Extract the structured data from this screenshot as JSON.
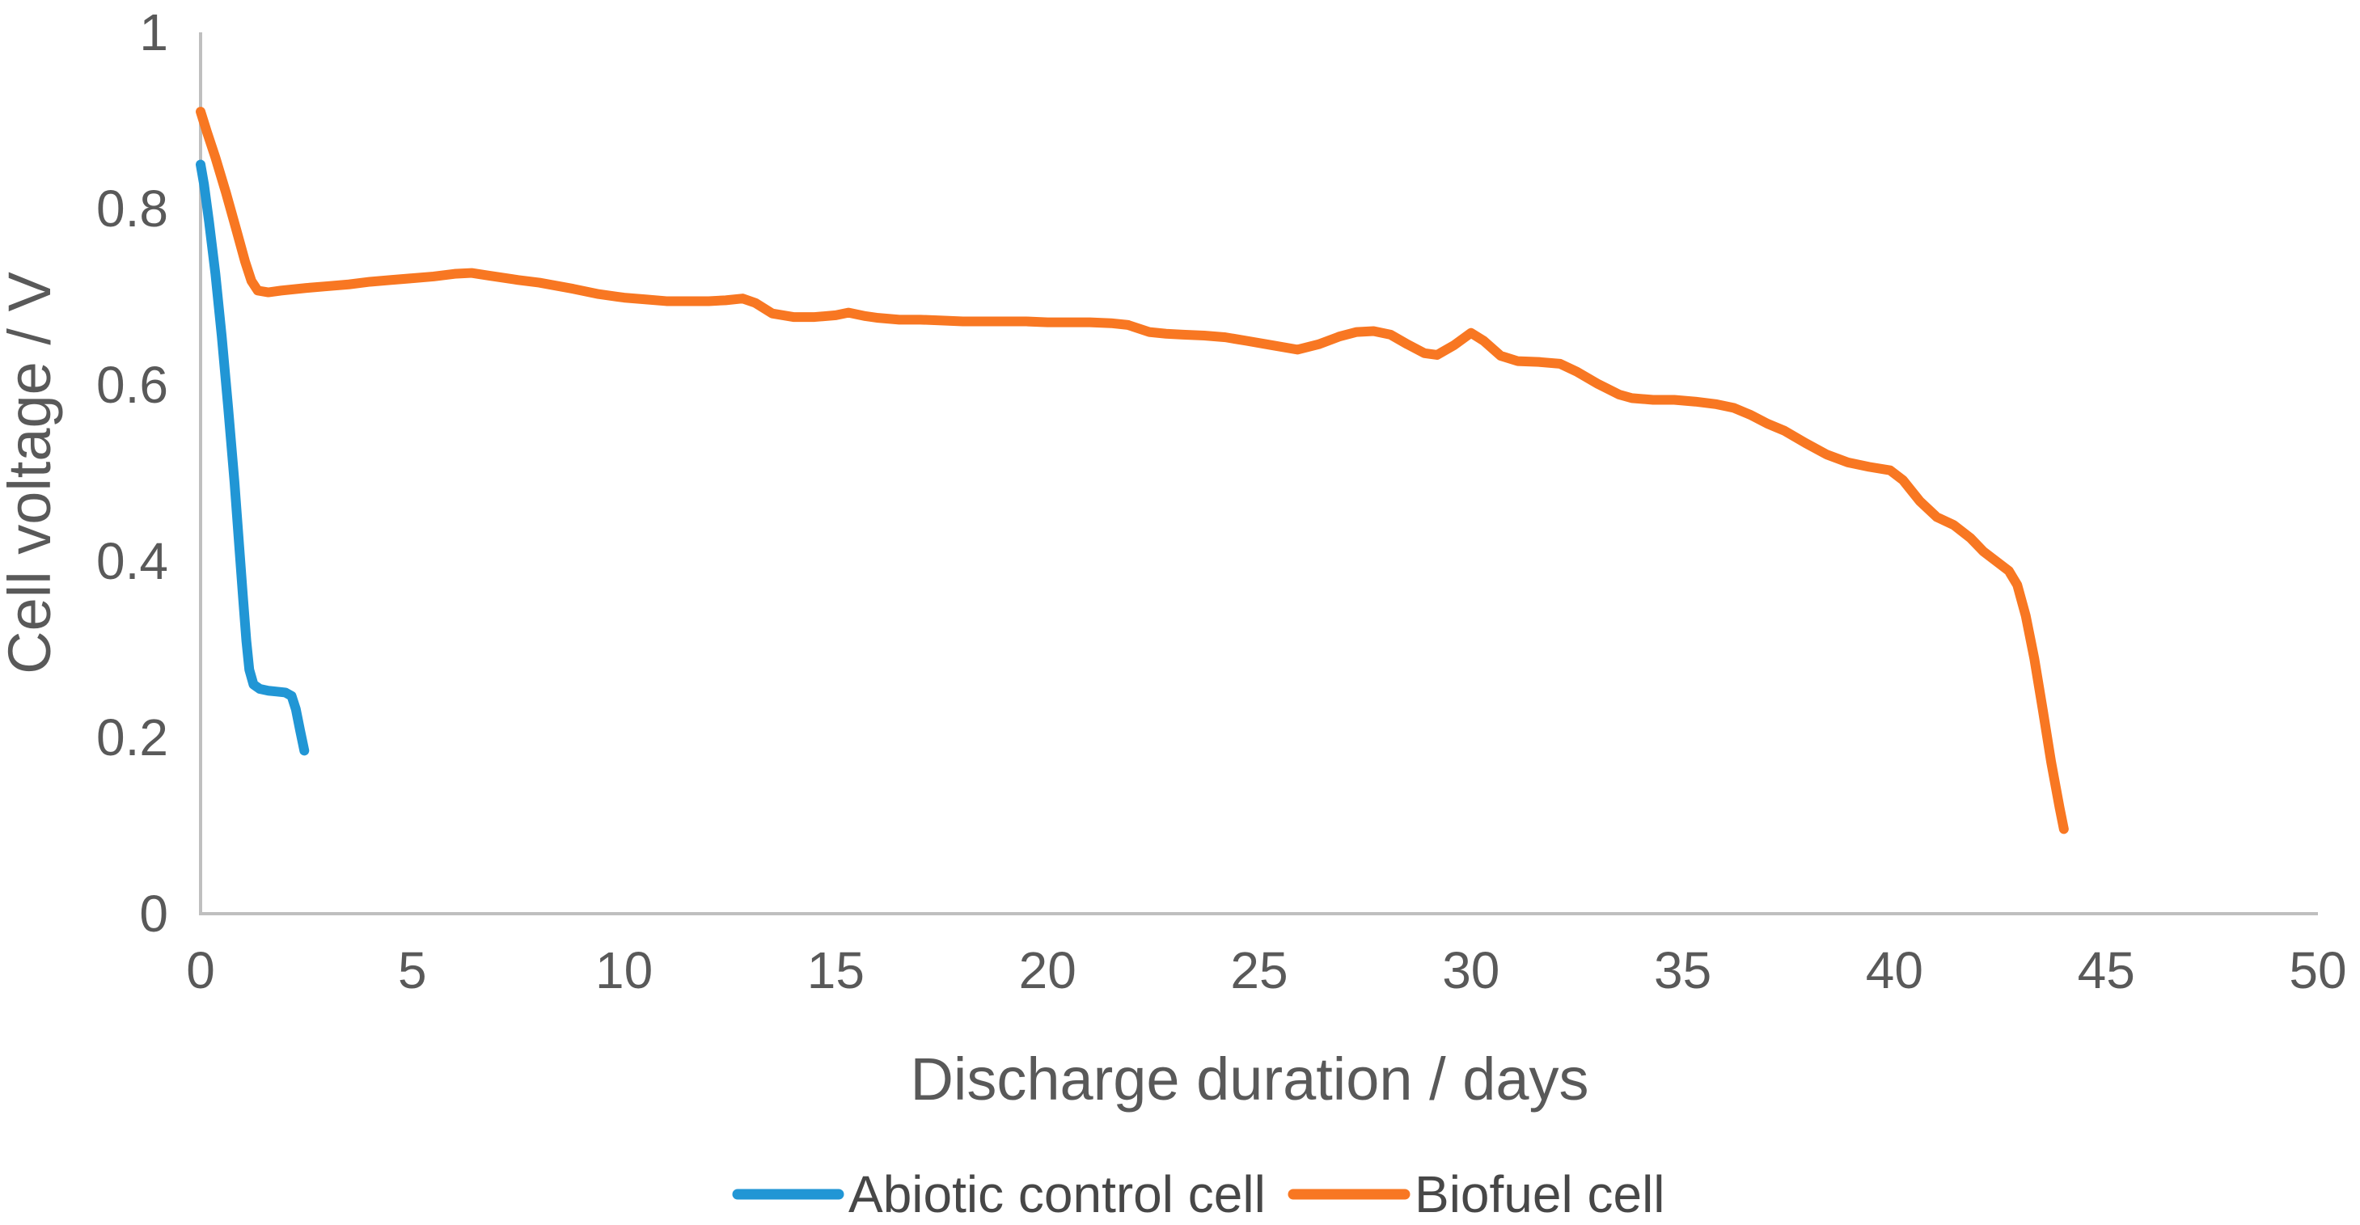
{
  "figure": {
    "type": "line-chart-figure",
    "background": "#ffffff"
  },
  "chart_data": {
    "type": "line",
    "title": "",
    "xlabel": "Discharge duration / days",
    "ylabel": "Cell voltage / V",
    "xlim": [
      0,
      50
    ],
    "ylim": [
      0,
      1
    ],
    "x_ticks": [
      0,
      5,
      10,
      15,
      20,
      25,
      30,
      35,
      40,
      45,
      50
    ],
    "y_ticks": [
      0,
      0.2,
      0.4,
      0.6,
      0.8,
      1
    ],
    "y_tick_labels": [
      "0",
      "0.2",
      "0.4",
      "0.6",
      "0.8",
      "1"
    ],
    "grid": false,
    "tick_marks": false,
    "axis_color": "#bfbfbf",
    "tick_text_color": "#595959",
    "legend_position": "bottom-center",
    "series": [
      {
        "name": "Abiotic control cell",
        "color": "#2196d5",
        "stroke_width": 12,
        "points": [
          [
            0,
            0.85
          ],
          [
            0.08,
            0.828
          ],
          [
            0.2,
            0.785
          ],
          [
            0.35,
            0.726
          ],
          [
            0.5,
            0.655
          ],
          [
            0.65,
            0.575
          ],
          [
            0.8,
            0.49
          ],
          [
            0.9,
            0.425
          ],
          [
            1.0,
            0.36
          ],
          [
            1.08,
            0.31
          ],
          [
            1.15,
            0.277
          ],
          [
            1.25,
            0.26
          ],
          [
            1.4,
            0.255
          ],
          [
            1.6,
            0.253
          ],
          [
            1.8,
            0.252
          ],
          [
            2.0,
            0.251
          ],
          [
            2.15,
            0.247
          ],
          [
            2.25,
            0.232
          ],
          [
            2.35,
            0.208
          ],
          [
            2.45,
            0.185
          ]
        ]
      },
      {
        "name": "Biofuel cell",
        "color": "#f87722",
        "stroke_width": 12,
        "points": [
          [
            0,
            0.91
          ],
          [
            0.15,
            0.887
          ],
          [
            0.35,
            0.858
          ],
          [
            0.6,
            0.818
          ],
          [
            0.85,
            0.775
          ],
          [
            1.05,
            0.74
          ],
          [
            1.2,
            0.718
          ],
          [
            1.35,
            0.707
          ],
          [
            1.6,
            0.705
          ],
          [
            1.9,
            0.707
          ],
          [
            2.5,
            0.71
          ],
          [
            3.0,
            0.712
          ],
          [
            3.5,
            0.714
          ],
          [
            4.0,
            0.717
          ],
          [
            4.5,
            0.719
          ],
          [
            5.0,
            0.721
          ],
          [
            5.5,
            0.723
          ],
          [
            6.0,
            0.726
          ],
          [
            6.4,
            0.727
          ],
          [
            6.8,
            0.724
          ],
          [
            7.5,
            0.719
          ],
          [
            8.0,
            0.716
          ],
          [
            8.8,
            0.709
          ],
          [
            9.4,
            0.703
          ],
          [
            10.0,
            0.699
          ],
          [
            10.5,
            0.697
          ],
          [
            11.0,
            0.695
          ],
          [
            11.5,
            0.695
          ],
          [
            12.0,
            0.695
          ],
          [
            12.4,
            0.696
          ],
          [
            12.8,
            0.698
          ],
          [
            13.1,
            0.693
          ],
          [
            13.5,
            0.681
          ],
          [
            14.0,
            0.677
          ],
          [
            14.5,
            0.677
          ],
          [
            15.0,
            0.679
          ],
          [
            15.3,
            0.682
          ],
          [
            15.7,
            0.678
          ],
          [
            16.0,
            0.676
          ],
          [
            16.5,
            0.674
          ],
          [
            17.0,
            0.674
          ],
          [
            17.5,
            0.673
          ],
          [
            18.0,
            0.672
          ],
          [
            18.5,
            0.672
          ],
          [
            19.0,
            0.672
          ],
          [
            19.5,
            0.672
          ],
          [
            20.0,
            0.671
          ],
          [
            20.5,
            0.671
          ],
          [
            21.0,
            0.671
          ],
          [
            21.5,
            0.67
          ],
          [
            21.9,
            0.668
          ],
          [
            22.4,
            0.66
          ],
          [
            22.8,
            0.658
          ],
          [
            23.2,
            0.657
          ],
          [
            23.7,
            0.656
          ],
          [
            24.2,
            0.654
          ],
          [
            24.7,
            0.65
          ],
          [
            25.3,
            0.645
          ],
          [
            25.9,
            0.64
          ],
          [
            26.4,
            0.646
          ],
          [
            26.9,
            0.655
          ],
          [
            27.3,
            0.66
          ],
          [
            27.7,
            0.661
          ],
          [
            28.1,
            0.657
          ],
          [
            28.5,
            0.646
          ],
          [
            28.9,
            0.636
          ],
          [
            29.2,
            0.634
          ],
          [
            29.6,
            0.645
          ],
          [
            30.0,
            0.659
          ],
          [
            30.3,
            0.65
          ],
          [
            30.7,
            0.633
          ],
          [
            31.1,
            0.627
          ],
          [
            31.6,
            0.626
          ],
          [
            32.1,
            0.624
          ],
          [
            32.5,
            0.615
          ],
          [
            33.0,
            0.601
          ],
          [
            33.5,
            0.589
          ],
          [
            33.8,
            0.585
          ],
          [
            34.3,
            0.583
          ],
          [
            34.8,
            0.583
          ],
          [
            35.3,
            0.581
          ],
          [
            35.8,
            0.578
          ],
          [
            36.2,
            0.574
          ],
          [
            36.6,
            0.566
          ],
          [
            37.0,
            0.556
          ],
          [
            37.4,
            0.548
          ],
          [
            37.9,
            0.534
          ],
          [
            38.4,
            0.521
          ],
          [
            38.9,
            0.512
          ],
          [
            39.4,
            0.507
          ],
          [
            39.9,
            0.503
          ],
          [
            40.2,
            0.492
          ],
          [
            40.6,
            0.468
          ],
          [
            41.0,
            0.45
          ],
          [
            41.4,
            0.441
          ],
          [
            41.8,
            0.426
          ],
          [
            42.1,
            0.411
          ],
          [
            42.4,
            0.4
          ],
          [
            42.7,
            0.389
          ],
          [
            42.9,
            0.373
          ],
          [
            43.1,
            0.338
          ],
          [
            43.3,
            0.29
          ],
          [
            43.5,
            0.232
          ],
          [
            43.7,
            0.172
          ],
          [
            43.9,
            0.12
          ],
          [
            44.0,
            0.096
          ]
        ]
      }
    ]
  },
  "legend": {
    "items": [
      {
        "label": "Abiotic control cell",
        "color": "#2196d5"
      },
      {
        "label": "Biofuel cell",
        "color": "#f87722"
      }
    ]
  }
}
